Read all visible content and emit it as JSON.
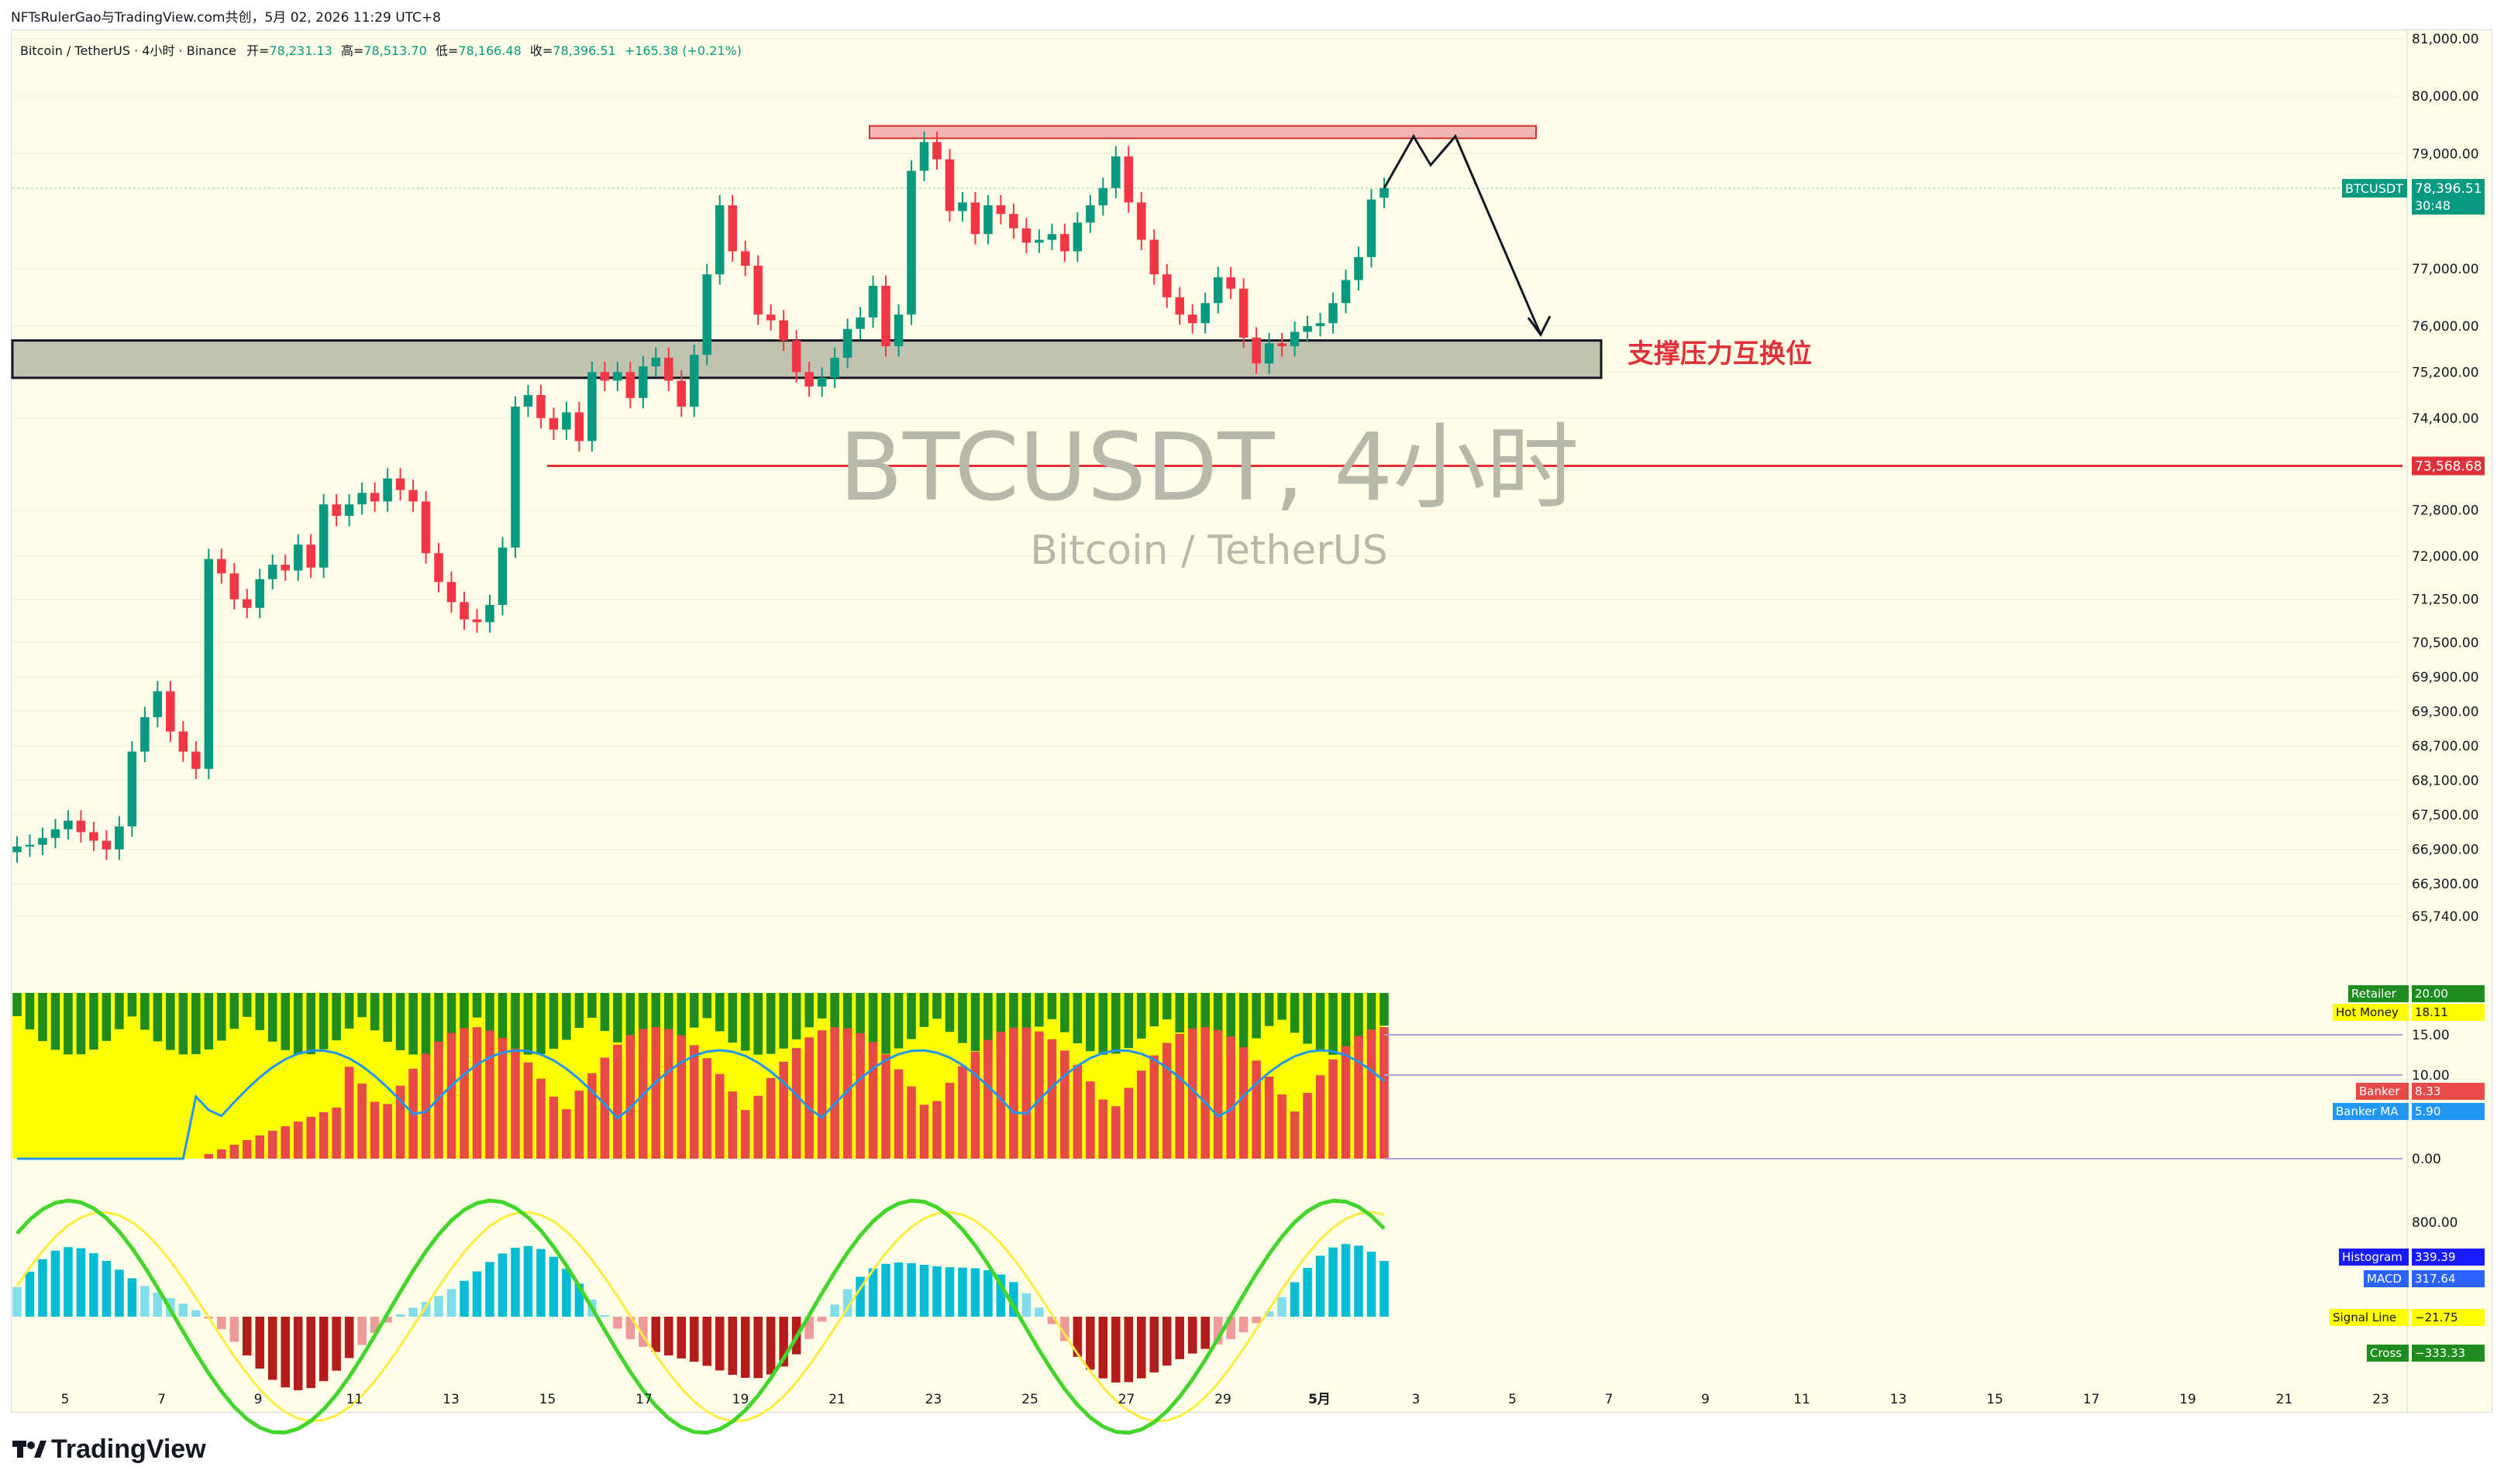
{
  "caption": "NFTsRulerGao与TradingView.com共创，5月 02, 2026 11:29 UTC+8",
  "header": {
    "symbol_line": "Bitcoin / TetherUS · 4小时 · Binance",
    "open_label": "开=",
    "open": "78,231.13",
    "high_label": "高=",
    "high": "78,513.70",
    "low_label": "低=",
    "low": "78,166.48",
    "close_label": "收=",
    "close": "78,396.51",
    "change": "+165.38 (+0.21%)"
  },
  "watermark": {
    "title": "BTCUSDT, 4小时",
    "subtitle": "Bitcoin / TetherUS"
  },
  "annotation": {
    "support_text": "支撑压力互换位"
  },
  "price_tags": {
    "symbol": "BTCUSDT",
    "price": "78,396.51",
    "countdown": "30:48",
    "line_price": "73,568.68"
  },
  "indicator_tags": {
    "retailer_label": "Retailer",
    "retailer_value": "20.00",
    "hot_label": "Hot Money",
    "hot_value": "18.11",
    "banker_label": "Banker",
    "banker_value": "8.33",
    "banker_ma_label": "Banker MA",
    "banker_ma_value": "5.90",
    "hist_label": "Histogram",
    "hist_value": "339.39",
    "macd_label": "MACD",
    "macd_value": "317.64",
    "signal_label": "Signal Line",
    "signal_value": "−21.75",
    "cross_label": "Cross",
    "cross_value": "−333.33"
  },
  "footer": {
    "brand": "TradingView"
  },
  "colors": {
    "up": "#089981",
    "down": "#f23645",
    "accent": "#2962ff",
    "bg": "#fefde8"
  },
  "chart_data": {
    "type": "candlestick",
    "price_axis_ticks": [
      "81,000.00",
      "80,000.00",
      "79,000.00",
      "77,000.00",
      "76,000.00",
      "75,200.00",
      "74,400.00",
      "72,800.00",
      "72,000.00",
      "71,250.00",
      "70,500.00",
      "69,900.00",
      "69,300.00",
      "68,700.00",
      "68,100.00",
      "67,500.00",
      "66,900.00",
      "66,300.00",
      "65,740.00"
    ],
    "indicator_axis_ticks": [
      "15.00",
      "10.00",
      "0.00"
    ],
    "macd_axis_ticks": [
      "800.00"
    ],
    "x_ticks": [
      "5",
      "7",
      "9",
      "11",
      "13",
      "15",
      "17",
      "19",
      "21",
      "23",
      "25",
      "27",
      "29",
      "5月",
      "3",
      "5",
      "7",
      "9",
      "11",
      "13",
      "15",
      "17",
      "19",
      "21",
      "23"
    ],
    "resistance_zone": [
      79200,
      79400
    ],
    "support_zone": [
      75100,
      75750
    ],
    "horizontal_line": 73568.68,
    "last_price": 78396.51,
    "candles_close": [
      66950,
      66980,
      67100,
      67250,
      67400,
      67200,
      67050,
      66900,
      67300,
      68600,
      69200,
      69650,
      68950,
      68600,
      68300,
      71950,
      71700,
      71250,
      71100,
      71600,
      71850,
      71750,
      72200,
      71800,
      72900,
      72700,
      72900,
      73100,
      72950,
      73350,
      73150,
      72950,
      72050,
      71550,
      71200,
      70900,
      70850,
      71150,
      72150,
      74600,
      74800,
      74400,
      74200,
      74500,
      74000,
      75200,
      75050,
      75200,
      74750,
      75300,
      75450,
      75050,
      74600,
      75500,
      76900,
      78100,
      77300,
      77050,
      76200,
      76100,
      75750,
      75200,
      74950,
      75100,
      75450,
      75950,
      76150,
      76700,
      75650,
      76200,
      78700,
      79200,
      78900,
      78000,
      78150,
      77600,
      78100,
      77950,
      77700,
      77450,
      77500,
      77600,
      77300,
      77800,
      78100,
      78400,
      78950,
      78150,
      77500,
      76900,
      76500,
      76200,
      76050,
      76400,
      76850,
      76650,
      75800,
      75350,
      75700,
      75650,
      75900,
      76000,
      76050,
      76400,
      76800,
      77200,
      78200,
      78400
    ],
    "candles_open": [
      66850,
      66950,
      66980,
      67100,
      67250,
      67400,
      67200,
      67050,
      66900,
      67300,
      68600,
      69200,
      69650,
      68950,
      68600,
      68300,
      71950,
      71700,
      71250,
      71100,
      71600,
      71850,
      71750,
      72200,
      71800,
      72900,
      72700,
      72900,
      73100,
      72950,
      73350,
      73150,
      72950,
      72050,
      71550,
      71200,
      70900,
      70850,
      71150,
      72150,
      74600,
      74800,
      74400,
      74200,
      74500,
      74000,
      75200,
      75050,
      75200,
      74750,
      75300,
      75450,
      75050,
      74600,
      75500,
      76900,
      78100,
      77300,
      77050,
      76200,
      76100,
      75750,
      75200,
      74950,
      75100,
      75450,
      75950,
      76150,
      76700,
      75650,
      76200,
      78700,
      79200,
      78900,
      78000,
      78150,
      77600,
      78100,
      77950,
      77700,
      77450,
      77500,
      77600,
      77300,
      77800,
      78100,
      78400,
      78950,
      78150,
      77500,
      76900,
      76500,
      76200,
      76050,
      76400,
      76850,
      76650,
      75800,
      75350,
      75700,
      75650,
      75900,
      76000,
      76050,
      76400,
      76800,
      77200,
      78231.13
    ],
    "projection": [
      [
        78396.51
      ],
      [
        79300
      ],
      [
        78800
      ],
      [
        79300
      ],
      [
        75850
      ]
    ],
    "banker_series_hint": "flow indicator"
  }
}
